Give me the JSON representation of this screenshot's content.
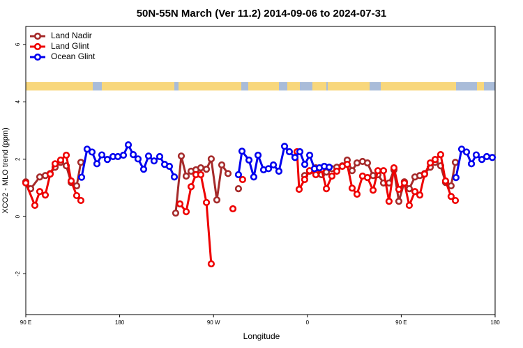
{
  "chart_data": {
    "type": "line",
    "title": "50N-55N March (Ver 11.2)   2014-09-06 to 2024-07-31",
    "x_label": "Longitude",
    "y_label": "XCO2 - MLO trend (ppm)",
    "xlim": [
      90,
      540
    ],
    "ylim": [
      -3.42,
      6.63
    ],
    "xticks": [
      {
        "value": 90,
        "label": "90 E"
      },
      180,
      {
        "value": 270,
        "label": "90 W"
      },
      {
        "value": 360,
        "label": "0"
      },
      {
        "value": 450,
        "label": "90 E"
      },
      {
        "value": 540,
        "label": "180"
      }
    ],
    "yticks": [
      6,
      4,
      2,
      0,
      -2
    ],
    "legend": "top-left",
    "series": [
      {
        "name": "Land Nadir",
        "color": "#a52a2a",
        "x": [
          90,
          94.7,
          103.4,
          108.7,
          113.4,
          118.1,
          123.4,
          128.8,
          133.5,
          138.8,
          142.8,
          null,
          233.7,
          239.1,
          243.8,
          248.5,
          253.1,
          257.8,
          263.2,
          267.8,
          273.2,
          277.9,
          283.9,
          null,
          293.9,
          null,
          357.4,
          362.1,
          368.1,
          373.5,
          378.2,
          383.5,
          388.2,
          393.5,
          398.2,
          402.9,
          407.6,
          412.9,
          417.6,
          423.0,
          427.6,
          433.0,
          438.3,
          443.0,
          447.7,
          453.0,
          457.7,
          463.1,
          467.8,
          472.4,
          477.8,
          482.5,
          487.8,
          492.5,
          497.8,
          501.9
        ],
        "values": [
          1.21,
          0.97,
          1.38,
          1.43,
          1.5,
          1.72,
          1.89,
          1.77,
          1.19,
          1.07,
          1.89,
          null,
          0.12,
          2.11,
          1.41,
          1.58,
          1.63,
          1.7,
          1.65,
          2.01,
          0.58,
          1.8,
          1.5,
          null,
          0.97,
          null,
          1.43,
          1.58,
          1.7,
          1.46,
          1.55,
          1.67,
          1.72,
          1.77,
          1.97,
          1.6,
          1.87,
          1.92,
          1.87,
          1.43,
          1.46,
          1.17,
          1.17,
          1.63,
          0.53,
          1.21,
          0.97,
          1.38,
          1.43,
          1.5,
          1.72,
          1.89,
          1.77,
          1.19,
          1.07,
          1.89
        ]
      },
      {
        "name": "Land Glint",
        "color": "#ee0000",
        "x": [
          90,
          98.7,
          103.4,
          108.7,
          113.4,
          118.1,
          123.4,
          128.8,
          133.5,
          138.8,
          142.8,
          null,
          237.8,
          243.8,
          248.5,
          253.1,
          257.8,
          263.2,
          267.8,
          null,
          288.6,
          null,
          297.9,
          null,
          350.1,
          352.1,
          357.4,
          362.1,
          368.1,
          373.5,
          378.2,
          383.5,
          388.2,
          393.5,
          398.2,
          402.9,
          407.6,
          412.9,
          417.6,
          423.0,
          427.6,
          433.0,
          438.3,
          443.0,
          447.7,
          453.0,
          457.7,
          463.1,
          467.8,
          472.4,
          477.8,
          482.5,
          487.8,
          492.5,
          497.8,
          501.9
        ],
        "values": [
          1.17,
          0.39,
          0.87,
          0.75,
          1.48,
          1.84,
          1.97,
          2.14,
          1.24,
          0.73,
          0.56,
          null,
          0.44,
          0.17,
          1.04,
          1.46,
          1.46,
          0.49,
          -1.65,
          null,
          0.27,
          null,
          1.29,
          null,
          2.26,
          0.95,
          1.29,
          1.6,
          1.46,
          1.65,
          0.97,
          1.41,
          1.58,
          1.75,
          1.82,
          0.99,
          0.78,
          1.41,
          1.36,
          0.92,
          1.6,
          1.6,
          0.53,
          1.7,
          0.95,
          1.17,
          0.39,
          0.87,
          0.75,
          1.48,
          1.87,
          1.99,
          2.16,
          1.24,
          0.7,
          0.56
        ]
      },
      {
        "name": "Ocean Glint",
        "color": "#0000ee",
        "x": [
          143.5,
          148.8,
          153.5,
          158.2,
          162.9,
          168.2,
          173.6,
          178.3,
          183.6,
          188.3,
          193.0,
          197.6,
          203.0,
          207.7,
          213.0,
          218.4,
          223.1,
          227.7,
          232.4,
          null,
          293.9,
          297.3,
          304.0,
          308.6,
          312.7,
          318.0,
          322.7,
          327.4,
          332.7,
          338.1,
          342.7,
          348.1,
          352.8,
          357.5,
          362.2,
          366.8,
          371.5,
          376.2,
          380.9,
          null,
          502.5,
          507.9,
          512.6,
          517.3,
          521.9,
          527.3,
          532.0,
          537.3
        ],
        "values": [
          1.37,
          2.35,
          2.25,
          1.84,
          2.15,
          1.99,
          2.09,
          2.09,
          2.14,
          2.5,
          2.16,
          2.01,
          1.65,
          2.11,
          1.94,
          2.09,
          1.82,
          1.75,
          1.38,
          null,
          1.46,
          2.28,
          1.97,
          1.38,
          2.14,
          1.63,
          1.67,
          1.8,
          1.58,
          2.45,
          2.26,
          2.06,
          2.26,
          1.82,
          2.14,
          1.67,
          1.7,
          1.75,
          1.72,
          null,
          1.36,
          2.35,
          2.25,
          1.84,
          2.15,
          1.99,
          2.09,
          2.06
        ]
      }
    ]
  }
}
